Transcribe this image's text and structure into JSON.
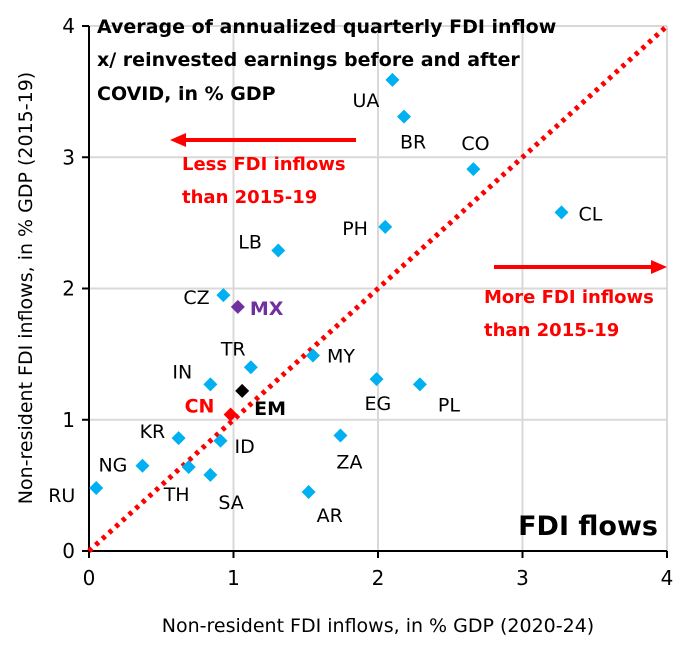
{
  "chart_data": {
    "type": "scatter",
    "title": [
      "Average of annualized quarterly FDI inflow",
      "x/ reinvested earnings before and after",
      "COVID, in % GDP"
    ],
    "xlabel": "Non-resident FDI inflows, in % GDP (2020-24)",
    "ylabel": "Non-resident FDI inflows, in % GDP (2015-19)",
    "xlim": [
      0,
      4
    ],
    "ylim": [
      0,
      4
    ],
    "xticks": [
      "0",
      "1",
      "2",
      "3",
      "4"
    ],
    "yticks": [
      "0",
      "1",
      "2",
      "3",
      "4"
    ],
    "grid": true,
    "corner_label": "FDI flows",
    "diagonal": {
      "style": "dotted",
      "color": "#ff0000"
    },
    "annotations": [
      {
        "text": [
          "Less FDI inflows",
          "than 2015-19"
        ],
        "arrow": "left",
        "color": "#ff0000"
      },
      {
        "text": [
          "More FDI inflows",
          "than 2015-19"
        ],
        "arrow": "right",
        "color": "#ff0000"
      }
    ],
    "colors": {
      "default": "#00b0f0",
      "EM": "#000000",
      "CN": "#ff0000",
      "MX": "#7030a0"
    },
    "points": [
      {
        "label": "RU",
        "x": 0.05,
        "y": 0.48
      },
      {
        "label": "NG",
        "x": 0.37,
        "y": 0.65
      },
      {
        "label": "KR",
        "x": 0.62,
        "y": 0.86
      },
      {
        "label": "TH",
        "x": 0.69,
        "y": 0.64
      },
      {
        "label": "SA",
        "x": 0.84,
        "y": 0.58
      },
      {
        "label": "IN",
        "x": 0.84,
        "y": 1.27
      },
      {
        "label": "ID",
        "x": 0.91,
        "y": 0.84
      },
      {
        "label": "CN",
        "x": 0.98,
        "y": 1.04
      },
      {
        "label": "EM",
        "x": 1.06,
        "y": 1.22
      },
      {
        "label": "TR",
        "x": 1.12,
        "y": 1.4
      },
      {
        "label": "AR",
        "x": 1.52,
        "y": 0.45
      },
      {
        "label": "ZA",
        "x": 1.74,
        "y": 0.88
      },
      {
        "label": "MY",
        "x": 1.55,
        "y": 1.49
      },
      {
        "label": "EG",
        "x": 1.99,
        "y": 1.31
      },
      {
        "label": "PL",
        "x": 2.29,
        "y": 1.27
      },
      {
        "label": "CZ",
        "x": 0.93,
        "y": 1.95
      },
      {
        "label": "MX",
        "x": 1.03,
        "y": 1.86
      },
      {
        "label": "LB",
        "x": 1.31,
        "y": 2.29
      },
      {
        "label": "PH",
        "x": 2.05,
        "y": 2.47
      },
      {
        "label": "CO",
        "x": 2.66,
        "y": 2.91
      },
      {
        "label": "CL",
        "x": 3.27,
        "y": 2.58
      },
      {
        "label": "UA",
        "x": 2.1,
        "y": 3.59
      },
      {
        "label": "BR",
        "x": 2.18,
        "y": 3.31
      }
    ]
  }
}
